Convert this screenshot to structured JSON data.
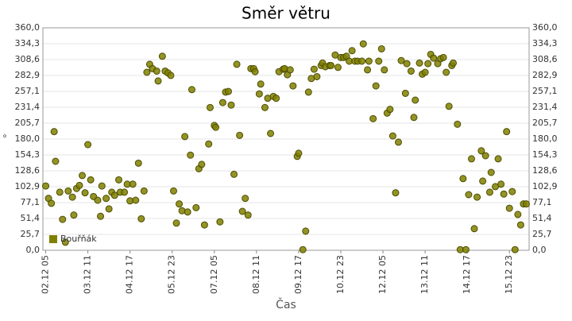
{
  "chart_data": {
    "type": "scatter",
    "title": "Směr větru",
    "xlabel": "Čas",
    "ylabel": "°",
    "x": [
      0,
      2,
      4,
      6,
      7,
      10,
      12,
      14,
      16,
      19,
      20,
      22,
      24,
      26,
      28,
      30,
      32,
      34,
      37,
      39,
      40,
      43,
      45,
      47,
      49,
      52,
      53,
      56,
      58,
      60,
      62,
      64,
      66,
      68,
      70,
      72,
      74,
      76,
      79,
      80,
      83,
      85,
      87,
      89,
      91,
      93,
      95,
      97,
      99,
      101,
      103,
      104,
      107,
      109,
      111,
      113,
      116,
      117,
      120,
      121,
      124,
      126,
      128,
      130,
      132,
      134,
      136,
      138,
      140,
      142,
      144,
      146,
      148,
      149,
      152,
      153,
      156,
      158,
      160,
      162,
      164,
      166,
      169,
      170,
      172,
      174,
      176,
      179,
      180,
      183,
      185,
      187,
      189,
      191,
      193,
      196,
      197,
      199,
      202,
      203,
      206,
      208,
      210,
      212,
      214,
      216,
      218,
      220,
      222,
      225,
      226,
      229,
      230,
      233,
      235,
      237,
      239,
      241,
      243,
      245,
      247,
      249,
      251,
      253,
      256,
      257,
      260,
      262,
      263,
      266,
      268,
      270,
      272,
      274,
      276,
      279,
      281,
      283,
      285,
      287,
      289,
      290,
      293,
      295,
      297,
      299,
      301,
      303,
      305,
      307,
      310,
      311,
      313,
      316,
      317,
      320,
      322,
      324,
      326,
      328,
      330,
      332,
      334,
      336,
      338,
      340,
      342
    ],
    "series": [
      {
        "name": "Bouřňák",
        "color": "#808000",
        "values": [
          104,
          84,
          76,
          192,
          144,
          94,
          50,
          13,
          96,
          86,
          57,
          100,
          105,
          121,
          93,
          171,
          114,
          87,
          81,
          55,
          104,
          84,
          67,
          94,
          89,
          114,
          94,
          94,
          107,
          80,
          107,
          81,
          141,
          51,
          96,
          288,
          301,
          294,
          290,
          274,
          314,
          290,
          287,
          283,
          96,
          44,
          75,
          64,
          184,
          62,
          154,
          260,
          69,
          132,
          139,
          41,
          172,
          231,
          202,
          199,
          46,
          239,
          256,
          257,
          235,
          123,
          301,
          186,
          63,
          84,
          57,
          294,
          294,
          289,
          253,
          269,
          231,
          246,
          189,
          249,
          246,
          289,
          293,
          294,
          284,
          292,
          266,
          152,
          157,
          1,
          31,
          256,
          278,
          293,
          281,
          299,
          303,
          297,
          299,
          299,
          316,
          296,
          312,
          312,
          314,
          306,
          323,
          306,
          306,
          306,
          334,
          292,
          306,
          213,
          266,
          306,
          326,
          292,
          222,
          228,
          185,
          93,
          175,
          307,
          254,
          302,
          290,
          215,
          243,
          303,
          285,
          288,
          302,
          317,
          311,
          302,
          310,
          312,
          288,
          233,
          299,
          303,
          204,
          1,
          116,
          1,
          90,
          148,
          35,
          86,
          161,
          112,
          153,
          94,
          126,
          103,
          148,
          107,
          91,
          192,
          68,
          95,
          1,
          58,
          41,
          75,
          75
        ]
      }
    ],
    "xlim": [
      -2,
      344
    ],
    "xticks": [
      {
        "value": 0,
        "label": "02.12 05"
      },
      {
        "value": 30,
        "label": "03.12 11"
      },
      {
        "value": 60,
        "label": "04.12 17"
      },
      {
        "value": 90,
        "label": "05.12 23"
      },
      {
        "value": 120,
        "label": "07.12 05"
      },
      {
        "value": 150,
        "label": "08.12 11"
      },
      {
        "value": 180,
        "label": "09.12 17"
      },
      {
        "value": 210,
        "label": "10.12 23"
      },
      {
        "value": 240,
        "label": "12.12 05"
      },
      {
        "value": 270,
        "label": "13.12 11"
      },
      {
        "value": 300,
        "label": "14.12 17"
      },
      {
        "value": 330,
        "label": "15.12 23"
      }
    ],
    "ylim": [
      0,
      360
    ],
    "yticks": [
      {
        "value": 0,
        "label": "0,0"
      },
      {
        "value": 25.7,
        "label": "25,7"
      },
      {
        "value": 51.4,
        "label": "51,4"
      },
      {
        "value": 77.1,
        "label": "77,1"
      },
      {
        "value": 102.9,
        "label": "102,9"
      },
      {
        "value": 128.6,
        "label": "128,6"
      },
      {
        "value": 154.3,
        "label": "154,3"
      },
      {
        "value": 180,
        "label": "180,0"
      },
      {
        "value": 205.7,
        "label": "205,7"
      },
      {
        "value": 231.4,
        "label": "231,4"
      },
      {
        "value": 257.1,
        "label": "257,1"
      },
      {
        "value": 282.9,
        "label": "282,9"
      },
      {
        "value": 308.6,
        "label": "308,6"
      },
      {
        "value": 334.3,
        "label": "334,3"
      },
      {
        "value": 360,
        "label": "360,0"
      }
    ],
    "grid": true,
    "legend": "lower left"
  }
}
